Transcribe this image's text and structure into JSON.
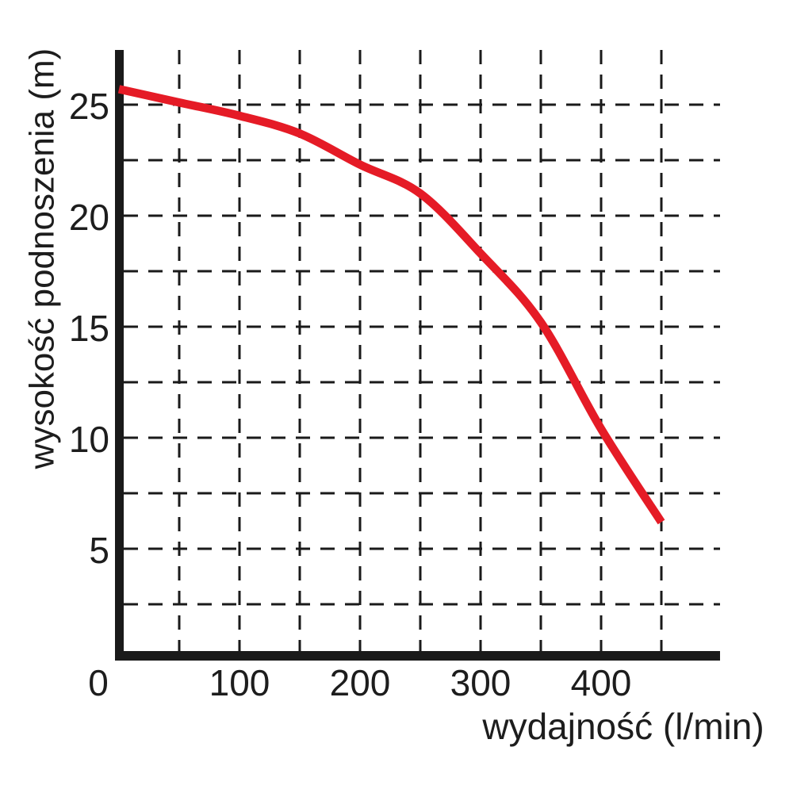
{
  "page": {
    "background": "#ffffff",
    "description": "Pump performance curve chart"
  },
  "colors": {
    "curve": "#e51b26",
    "axis": "#1a1a1a",
    "grid": "#1a1a1a",
    "text": "#1d1d1d",
    "background": "#ffffff"
  },
  "chart_data": {
    "type": "line",
    "title": "",
    "xlabel": "wydajność (l/min)",
    "ylabel": "wysokość podnoszenia (m)",
    "xlim": [
      0,
      500
    ],
    "ylim": [
      0,
      27.5
    ],
    "x_ticks": [
      "0",
      "100",
      "200",
      "300",
      "400"
    ],
    "x_tick_values": [
      0,
      100,
      200,
      300,
      400
    ],
    "y_ticks": [
      "5",
      "10",
      "15",
      "20",
      "25"
    ],
    "y_tick_values": [
      5,
      10,
      15,
      20,
      25
    ],
    "x_gridlines": [
      50,
      100,
      150,
      200,
      250,
      300,
      350,
      400,
      450
    ],
    "y_gridlines": [
      2.5,
      5,
      7.5,
      10,
      12.5,
      15,
      17.5,
      20,
      22.5,
      25
    ],
    "grid_style": "dashed",
    "legend": "none",
    "series": [
      {
        "name": "pump performance curve",
        "color": "#e51b26",
        "x": [
          0,
          50,
          100,
          150,
          200,
          250,
          300,
          350,
          400,
          450
        ],
        "y": [
          25.7,
          25.1,
          24.5,
          23.7,
          22.3,
          21.0,
          18.3,
          15.2,
          10.4,
          6.2
        ]
      }
    ]
  }
}
